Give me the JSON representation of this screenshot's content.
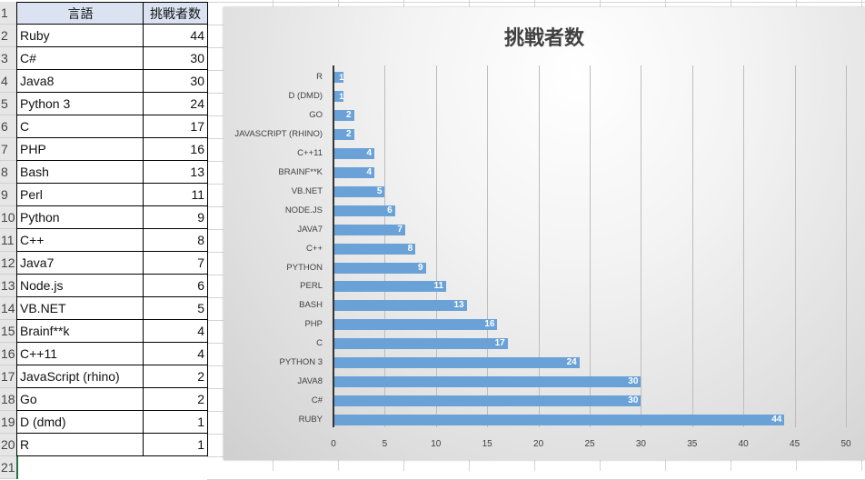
{
  "spreadsheet": {
    "row_numbers": [
      "1",
      "2",
      "3",
      "4",
      "5",
      "6",
      "7",
      "8",
      "9",
      "10",
      "11",
      "12",
      "13",
      "14",
      "15",
      "16",
      "17",
      "18",
      "19",
      "20",
      "21"
    ],
    "headers": {
      "language": "言語",
      "challengers": "挑戦者数"
    },
    "rows": [
      {
        "language": "Ruby",
        "count": "44"
      },
      {
        "language": "C#",
        "count": "30"
      },
      {
        "language": "Java8",
        "count": "30"
      },
      {
        "language": "Python 3",
        "count": "24"
      },
      {
        "language": "C",
        "count": "17"
      },
      {
        "language": "PHP",
        "count": "16"
      },
      {
        "language": "Bash",
        "count": "13"
      },
      {
        "language": "Perl",
        "count": "11"
      },
      {
        "language": "Python",
        "count": "9"
      },
      {
        "language": "C++",
        "count": "8"
      },
      {
        "language": "Java7",
        "count": "7"
      },
      {
        "language": "Node.js",
        "count": "6"
      },
      {
        "language": "VB.NET",
        "count": "5"
      },
      {
        "language": "Brainf**k",
        "count": "4"
      },
      {
        "language": "C++11",
        "count": "4"
      },
      {
        "language": "JavaScript (rhino)",
        "count": "2"
      },
      {
        "language": "Go",
        "count": "2"
      },
      {
        "language": "D (dmd)",
        "count": "1"
      },
      {
        "language": "R",
        "count": "1"
      }
    ]
  },
  "chart_data": {
    "type": "bar",
    "orientation": "horizontal",
    "title": "挑戦者数",
    "categories": [
      "R",
      "D (DMD)",
      "GO",
      "JAVASCRIPT (RHINO)",
      "C++11",
      "BRAINF**K",
      "VB.NET",
      "NODE.JS",
      "JAVA7",
      "C++",
      "PYTHON",
      "PERL",
      "BASH",
      "PHP",
      "C",
      "PYTHON 3",
      "JAVA8",
      "C#",
      "RUBY"
    ],
    "values": [
      1,
      1,
      2,
      2,
      4,
      4,
      5,
      6,
      7,
      8,
      9,
      11,
      13,
      16,
      17,
      24,
      30,
      30,
      44
    ],
    "series": [
      {
        "name": "挑戦者数",
        "values": [
          1,
          1,
          2,
          2,
          4,
          4,
          5,
          6,
          7,
          8,
          9,
          11,
          13,
          16,
          17,
          24,
          30,
          30,
          44
        ]
      }
    ],
    "xlabel": "",
    "ylabel": "",
    "xlim": [
      0,
      50
    ],
    "x_ticks": [
      "0",
      "5",
      "10",
      "15",
      "20",
      "25",
      "30",
      "35",
      "40",
      "45",
      "50"
    ],
    "grid": true,
    "data_labels": true,
    "legend": "none",
    "bar_color": "#6aa2d8"
  }
}
